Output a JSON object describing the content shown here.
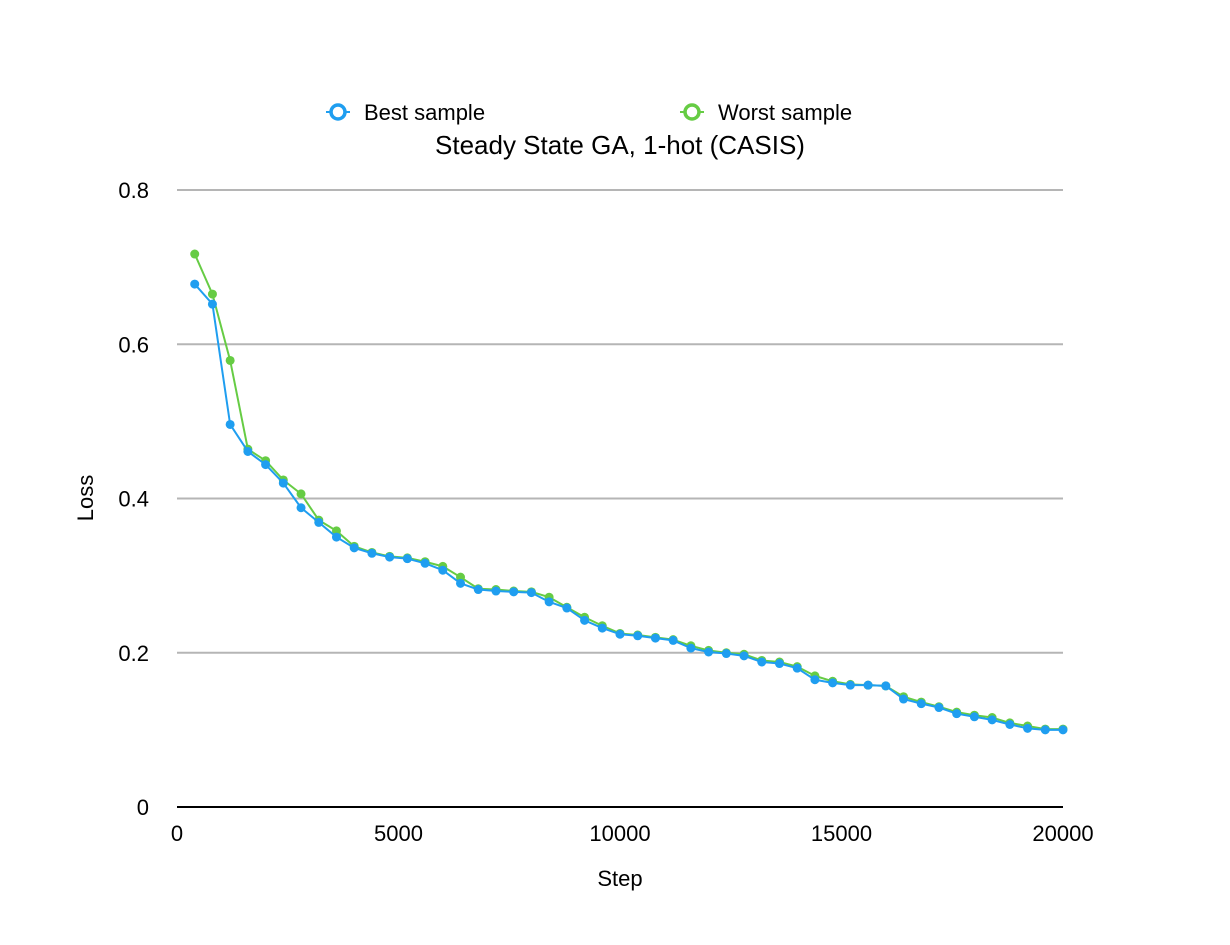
{
  "chart_data": {
    "type": "line",
    "title": "Steady State GA, 1-hot (CASIS)",
    "xlabel": "Step",
    "ylabel": "Loss",
    "xlim": [
      0,
      20000
    ],
    "ylim": [
      0,
      0.8
    ],
    "x_ticks": [
      "0",
      "5000",
      "10000",
      "15000",
      "20000"
    ],
    "y_ticks": [
      "0",
      "0.2",
      "0.4",
      "0.6",
      "0.8"
    ],
    "grid": true,
    "legend_position": "top-center",
    "x": [
      400,
      800,
      1200,
      1600,
      2000,
      2400,
      2800,
      3200,
      3600,
      4000,
      4400,
      4800,
      5200,
      5600,
      6000,
      6400,
      6800,
      7200,
      7600,
      8000,
      8400,
      8800,
      9200,
      9600,
      10000,
      10400,
      10800,
      11200,
      11600,
      12000,
      12400,
      12800,
      13200,
      13600,
      14000,
      14400,
      14800,
      15200,
      15600,
      16000,
      16400,
      16800,
      17200,
      17600,
      18000,
      18400,
      18800,
      19200,
      19600,
      20000
    ],
    "series": [
      {
        "name": "Best sample",
        "color": "#1f9ef0",
        "values": [
          0.678,
          0.652,
          0.496,
          0.461,
          0.444,
          0.42,
          0.388,
          0.369,
          0.35,
          0.336,
          0.329,
          0.324,
          0.322,
          0.316,
          0.307,
          0.29,
          0.282,
          0.28,
          0.279,
          0.278,
          0.266,
          0.258,
          0.242,
          0.232,
          0.224,
          0.222,
          0.219,
          0.216,
          0.206,
          0.201,
          0.199,
          0.196,
          0.188,
          0.186,
          0.18,
          0.165,
          0.161,
          0.158,
          0.158,
          0.157,
          0.14,
          0.134,
          0.129,
          0.121,
          0.117,
          0.113,
          0.107,
          0.102,
          0.1,
          0.1
        ]
      },
      {
        "name": "Worst sample",
        "color": "#66cc44",
        "values": [
          0.717,
          0.665,
          0.579,
          0.464,
          0.449,
          0.424,
          0.406,
          0.372,
          0.358,
          0.338,
          0.33,
          0.325,
          0.323,
          0.318,
          0.312,
          0.298,
          0.283,
          0.282,
          0.28,
          0.279,
          0.272,
          0.259,
          0.246,
          0.235,
          0.225,
          0.223,
          0.22,
          0.217,
          0.209,
          0.203,
          0.2,
          0.198,
          0.19,
          0.188,
          0.182,
          0.17,
          0.163,
          0.159,
          0.158,
          0.157,
          0.143,
          0.136,
          0.13,
          0.123,
          0.119,
          0.116,
          0.109,
          0.105,
          0.101,
          0.101
        ]
      }
    ]
  }
}
